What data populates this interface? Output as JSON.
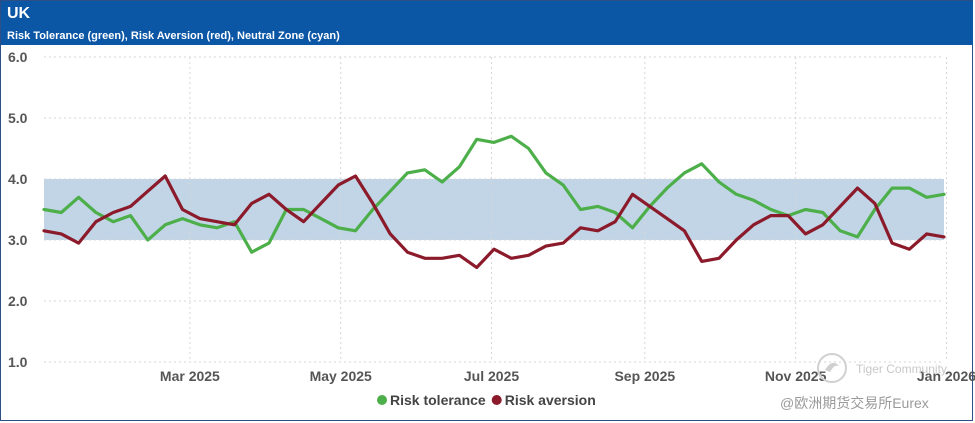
{
  "header": {
    "title": "UK",
    "subtitle": "Risk Tolerance (green), Risk Aversion (red), Neutral Zone (cyan)"
  },
  "watermark": {
    "community": "Tiger Community",
    "source": "@欧洲期货交易所Eurex"
  },
  "colors": {
    "header_bg": "#0b56a5",
    "tolerance": "#4daf4a",
    "aversion": "#8b1a2b",
    "neutral_zone": "#c1d5e7"
  },
  "chart_data": {
    "type": "line",
    "title": "UK",
    "subtitle": "Risk Tolerance (green), Risk Aversion (red), Neutral Zone (cyan)",
    "xlabel": "",
    "ylabel": "",
    "ylim": [
      1.0,
      6.0
    ],
    "yticks": [
      "1.0",
      "2.0",
      "3.0",
      "4.0",
      "5.0",
      "6.0"
    ],
    "xlim": [
      "2025-01-01",
      "2025-12-31"
    ],
    "xticks": [
      {
        "label": "Mar 2025",
        "date": "2025-03-01"
      },
      {
        "label": "May 2025",
        "date": "2025-05-01"
      },
      {
        "label": "Jul 2025",
        "date": "2025-07-01"
      },
      {
        "label": "Sep 2025",
        "date": "2025-09-01"
      },
      {
        "label": "Nov 2025",
        "date": "2025-11-01"
      },
      {
        "label": "Jan 2026",
        "date": "2026-01-01"
      }
    ],
    "grid": true,
    "legend_position": "bottom-center",
    "neutral_zone": {
      "low": 3.0,
      "high": 4.0,
      "label": "Neutral Zone"
    },
    "series": [
      {
        "name": "Risk tolerance",
        "color": "#4daf4a",
        "x": [
          "2025-01-01",
          "2025-01-08",
          "2025-01-15",
          "2025-01-22",
          "2025-01-29",
          "2025-02-05",
          "2025-02-12",
          "2025-02-19",
          "2025-02-26",
          "2025-03-05",
          "2025-03-12",
          "2025-03-19",
          "2025-03-26",
          "2025-04-02",
          "2025-04-09",
          "2025-04-16",
          "2025-04-23",
          "2025-04-30",
          "2025-05-07",
          "2025-05-14",
          "2025-05-21",
          "2025-05-28",
          "2025-06-04",
          "2025-06-11",
          "2025-06-18",
          "2025-06-25",
          "2025-07-02",
          "2025-07-09",
          "2025-07-16",
          "2025-07-23",
          "2025-07-30",
          "2025-08-06",
          "2025-08-13",
          "2025-08-20",
          "2025-08-27",
          "2025-09-03",
          "2025-09-10",
          "2025-09-17",
          "2025-09-24",
          "2025-10-01",
          "2025-10-08",
          "2025-10-15",
          "2025-10-22",
          "2025-10-29",
          "2025-11-05",
          "2025-11-12",
          "2025-11-19",
          "2025-11-26",
          "2025-12-03",
          "2025-12-10",
          "2025-12-17",
          "2025-12-24",
          "2025-12-31"
        ],
        "values": [
          3.5,
          3.45,
          3.7,
          3.45,
          3.3,
          3.4,
          3.0,
          3.25,
          3.35,
          3.25,
          3.2,
          3.3,
          2.8,
          2.95,
          3.5,
          3.5,
          3.35,
          3.2,
          3.15,
          3.5,
          3.8,
          4.1,
          4.15,
          3.95,
          4.2,
          4.65,
          4.6,
          4.7,
          4.5,
          4.1,
          3.9,
          3.5,
          3.55,
          3.45,
          3.2,
          3.55,
          3.85,
          4.1,
          4.25,
          3.95,
          3.75,
          3.65,
          3.5,
          3.4,
          3.5,
          3.45,
          3.15,
          3.05,
          3.5,
          3.85,
          3.85,
          3.7,
          3.75
        ]
      },
      {
        "name": "Risk aversion",
        "color": "#8b1a2b",
        "x": [
          "2025-01-01",
          "2025-01-08",
          "2025-01-15",
          "2025-01-22",
          "2025-01-29",
          "2025-02-05",
          "2025-02-12",
          "2025-02-19",
          "2025-02-26",
          "2025-03-05",
          "2025-03-12",
          "2025-03-19",
          "2025-03-26",
          "2025-04-02",
          "2025-04-09",
          "2025-04-16",
          "2025-04-23",
          "2025-04-30",
          "2025-05-07",
          "2025-05-14",
          "2025-05-21",
          "2025-05-28",
          "2025-06-04",
          "2025-06-11",
          "2025-06-18",
          "2025-06-25",
          "2025-07-02",
          "2025-07-09",
          "2025-07-16",
          "2025-07-23",
          "2025-07-30",
          "2025-08-06",
          "2025-08-13",
          "2025-08-20",
          "2025-08-27",
          "2025-09-03",
          "2025-09-10",
          "2025-09-17",
          "2025-09-24",
          "2025-10-01",
          "2025-10-08",
          "2025-10-15",
          "2025-10-22",
          "2025-10-29",
          "2025-11-05",
          "2025-11-12",
          "2025-11-19",
          "2025-11-26",
          "2025-12-03",
          "2025-12-10",
          "2025-12-17",
          "2025-12-24",
          "2025-12-31"
        ],
        "values": [
          3.15,
          3.1,
          2.95,
          3.3,
          3.45,
          3.55,
          3.8,
          4.05,
          3.5,
          3.35,
          3.3,
          3.25,
          3.6,
          3.75,
          3.5,
          3.3,
          3.6,
          3.9,
          4.05,
          3.6,
          3.1,
          2.8,
          2.7,
          2.7,
          2.75,
          2.55,
          2.85,
          2.7,
          2.75,
          2.9,
          2.95,
          3.2,
          3.15,
          3.3,
          3.75,
          3.55,
          3.35,
          3.15,
          2.65,
          2.7,
          3.0,
          3.25,
          3.4,
          3.4,
          3.1,
          3.25,
          3.55,
          3.85,
          3.6,
          2.95,
          2.85,
          3.1,
          3.05
        ]
      }
    ]
  }
}
